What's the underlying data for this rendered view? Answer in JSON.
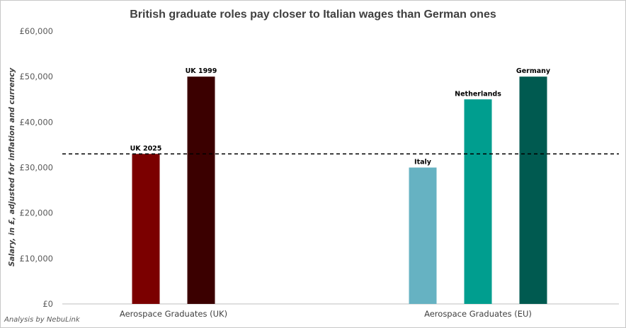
{
  "chart_data": {
    "type": "bar",
    "title": "British graduate roles pay closer to Italian wages than German ones",
    "ylabel": "Salary, in £, adjusted for inflation and currency",
    "xlabel": "",
    "ylim": [
      0,
      60000
    ],
    "yticks": [
      0,
      10000,
      20000,
      30000,
      40000,
      50000,
      60000
    ],
    "ytick_labels": [
      "£0",
      "£10,000",
      "£20,000",
      "£30,000",
      "£40,000",
      "£50,000",
      "£60,000"
    ],
    "categories": [
      "Aerospace Graduates (UK)",
      "Aerospace Graduates (EU)"
    ],
    "series": [
      {
        "name": "UK 2025",
        "category": "Aerospace Graduates (UK)",
        "value": 33000,
        "color": "#7b0000"
      },
      {
        "name": "UK 1999",
        "category": "Aerospace Graduates (UK)",
        "value": 50000,
        "color": "#3b0000"
      },
      {
        "name": "Italy",
        "category": "Aerospace Graduates (EU)",
        "value": 30000,
        "color": "#66b2c2"
      },
      {
        "name": "Netherlands",
        "category": "Aerospace Graduates (EU)",
        "value": 45000,
        "color": "#009e8f"
      },
      {
        "name": "Germany",
        "category": "Aerospace Graduates (EU)",
        "value": 50000,
        "color": "#005a50"
      }
    ],
    "reference_line": {
      "value": 33000,
      "style": "dashed",
      "color": "#000000"
    },
    "grid": false,
    "legend": "none"
  },
  "footnote": "Analysis by NebuLink"
}
